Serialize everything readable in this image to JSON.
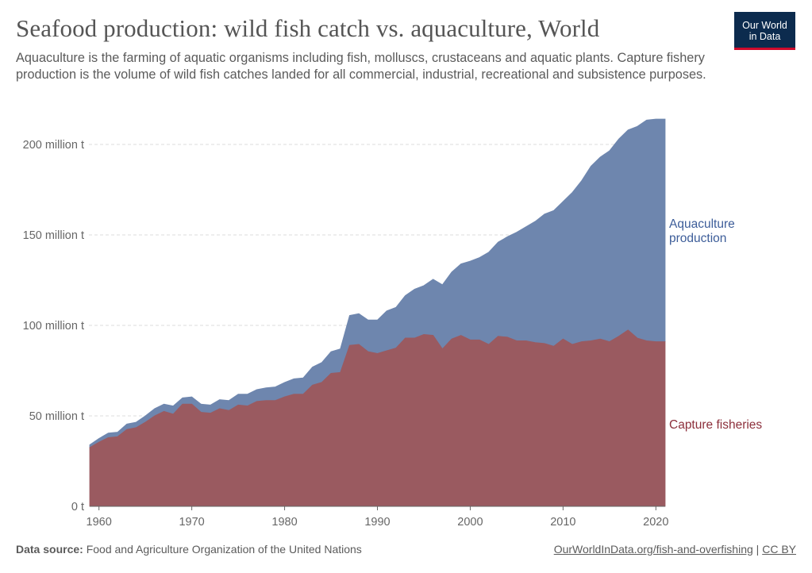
{
  "title": "Seafood production: wild fish catch vs. aquaculture, World",
  "subtitle": "Aquaculture is the farming of aquatic organisms including fish, molluscs, crustaceans and aquatic plants. Capture fishery production is the volume of wild fish catches landed for all commercial, industrial, recreational and subsistence purposes.",
  "logo": {
    "line1": "Our World",
    "line2": "in Data"
  },
  "footer": {
    "source_label": "Data source:",
    "source_text": "Food and Agriculture Organization of the United Nations",
    "link_text": "OurWorldInData.org/fish-and-overfishing",
    "separator": "|",
    "license": "CC BY"
  },
  "colors": {
    "capture": "#9a5a60",
    "aquaculture": "#6e86ae",
    "capture_label": "#8c2f3b",
    "aquaculture_label": "#3d5d99",
    "grid": "#dddddd",
    "axis": "#666666"
  },
  "chart_data": {
    "type": "area",
    "stacked": true,
    "title": "Seafood production: wild fish catch vs. aquaculture, World",
    "xlabel": "",
    "ylabel": "",
    "xlim": [
      1959,
      2021
    ],
    "ylim": [
      0,
      200000000
    ],
    "y_ticks": [
      0,
      50000000,
      100000000,
      150000000,
      200000000
    ],
    "y_tick_labels": [
      "0 t",
      "50 million t",
      "100 million t",
      "150 million t",
      "200 million t"
    ],
    "x_ticks": [
      1960,
      1970,
      1980,
      1990,
      2000,
      2010,
      2020
    ],
    "x_tick_labels": [
      "1960",
      "1970",
      "1980",
      "1990",
      "2000",
      "2010",
      "2020"
    ],
    "grid": true,
    "x": [
      1959,
      1960,
      1961,
      1962,
      1963,
      1964,
      1965,
      1966,
      1967,
      1968,
      1969,
      1970,
      1971,
      1972,
      1973,
      1974,
      1975,
      1976,
      1977,
      1978,
      1979,
      1980,
      1981,
      1982,
      1983,
      1984,
      1985,
      1986,
      1987,
      1988,
      1989,
      1990,
      1991,
      1992,
      1993,
      1994,
      1995,
      1996,
      1997,
      1998,
      1999,
      2000,
      2001,
      2002,
      2003,
      2004,
      2005,
      2006,
      2007,
      2008,
      2009,
      2010,
      2011,
      2012,
      2013,
      2014,
      2015,
      2016,
      2017,
      2018,
      2019,
      2020,
      2021
    ],
    "series": [
      {
        "name": "Capture fisheries",
        "values": [
          32.5,
          35.5,
          38,
          38.5,
          42.5,
          43.5,
          46.5,
          50,
          52.5,
          51,
          56.5,
          56.5,
          52,
          51.5,
          54,
          53,
          56,
          55.5,
          58,
          58.5,
          58.5,
          60.5,
          62,
          62,
          67,
          68.5,
          73.5,
          74,
          89,
          89.5,
          85.5,
          84.5,
          86,
          87.5,
          93,
          93,
          95,
          94.5,
          87,
          92.5,
          94.5,
          92,
          92,
          89.5,
          94,
          93.5,
          91.5,
          91.5,
          90.5,
          90,
          88.5,
          92.5,
          89.5,
          91,
          91.5,
          92.5,
          91,
          94,
          97.5,
          93,
          91.5,
          91,
          91
        ]
      },
      {
        "name": "Aquaculture production",
        "values": [
          1.5,
          2,
          2.5,
          2.5,
          3,
          3,
          3.5,
          4,
          4,
          4.5,
          3.5,
          4,
          4.5,
          4.5,
          5,
          5.5,
          6,
          6.5,
          6.5,
          7,
          7.5,
          8,
          8.5,
          9,
          10,
          11,
          12,
          13,
          16.5,
          17,
          17.5,
          18.5,
          22,
          22.5,
          23.5,
          27,
          27,
          31,
          35.5,
          37,
          39.5,
          43.5,
          45.5,
          51,
          52,
          55.5,
          60,
          63,
          67,
          71.5,
          75,
          76,
          84,
          89,
          96.5,
          100.5,
          105.5,
          109,
          110.5,
          117,
          122,
          123,
          123
        ]
      }
    ],
    "annotations": [
      "Aquaculture production",
      "Capture fisheries"
    ],
    "aquaculture_label_lines": [
      "Aquaculture",
      "production"
    ],
    "capture_label": "Capture fisheries",
    "value_unit": "million t"
  }
}
